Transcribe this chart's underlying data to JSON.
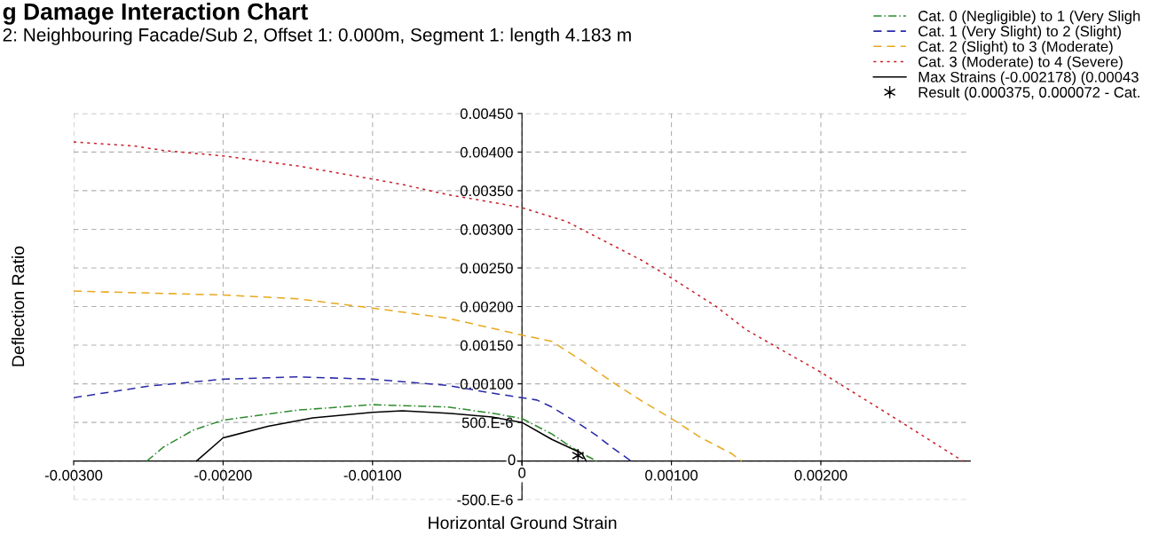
{
  "chart_data": {
    "type": "line",
    "title": "g Damage Interaction Chart",
    "subtitle": "2: Neighbouring Facade/Sub 2, Offset 1: 0.000m, Segment 1: length 4.183 m",
    "xlabel": "Horizontal Ground Strain",
    "ylabel": "Deflection Ratio",
    "xlim": [
      -0.003,
      0.003
    ],
    "ylim": [
      -0.0005,
      0.0045
    ],
    "xticks": [
      {
        "value": -0.003,
        "label": "-0.00300"
      },
      {
        "value": -0.002,
        "label": "-0.00200"
      },
      {
        "value": -0.001,
        "label": "-0.00100"
      },
      0,
      {
        "value": 0.001,
        "label": "0.00100"
      },
      {
        "value": 0.002,
        "label": "0.00200"
      }
    ],
    "yticks": [
      {
        "value": -0.0005,
        "label": "-500.E-6"
      },
      0,
      {
        "value": 0.0005,
        "label": "500.E-6"
      },
      {
        "value": 0.001,
        "label": "0.00100"
      },
      {
        "value": 0.0015,
        "label": "0.00150"
      },
      {
        "value": 0.002,
        "label": "0.00200"
      },
      {
        "value": 0.0025,
        "label": "0.00250"
      },
      {
        "value": 0.003,
        "label": "0.00300"
      },
      {
        "value": 0.0035,
        "label": "0.00350"
      },
      {
        "value": 0.004,
        "label": "0.00400"
      },
      {
        "value": 0.0045,
        "label": "0.00450"
      }
    ],
    "grid": true,
    "legend": "top right",
    "series": [
      {
        "name": "Cat. 0 (Negligible) to 1 (Very Sligh",
        "color": "#2e8b2e",
        "line_style": "dashdot",
        "x": [
          -0.00251,
          -0.0024,
          -0.0022,
          -0.002,
          -0.0015,
          -0.001,
          -0.0005,
          -0.0002,
          0,
          0.0002,
          0.0003,
          0.0004,
          0.0005
        ],
        "values": [
          0,
          0.00018,
          0.0004,
          0.00053,
          0.00066,
          0.00073,
          0.0007,
          0.00062,
          0.00055,
          0.00035,
          0.00022,
          0.0001,
          0
        ]
      },
      {
        "name": "Cat. 1 (Very Slight) to 2 (Slight)",
        "color": "#2a2aa8",
        "line_style": "dashed",
        "x": [
          -0.003,
          -0.0025,
          -0.002,
          -0.0015,
          -0.001,
          -0.0005,
          -0.0002,
          0,
          0.0001,
          0.0002,
          0.0003,
          0.0004,
          0.0005,
          0.0006,
          0.00073
        ],
        "values": [
          0.00082,
          0.00097,
          0.00106,
          0.00109,
          0.00106,
          0.00098,
          0.00088,
          0.00082,
          0.00079,
          0.0007,
          0.00058,
          0.00046,
          0.00033,
          0.00018,
          0
        ]
      },
      {
        "name": "Cat. 2 (Slight) to 3 (Moderate)",
        "color": "#e8a820",
        "line_style": "dashed",
        "x": [
          -0.003,
          -0.002,
          -0.0015,
          -0.001,
          -0.0005,
          -0.0002,
          0,
          0.0002,
          0.0004,
          0.0006,
          0.0008,
          0.001,
          0.0012,
          0.0014,
          0.00147
        ],
        "values": [
          0.0022,
          0.00215,
          0.0021,
          0.00198,
          0.00185,
          0.00172,
          0.00163,
          0.00155,
          0.0013,
          0.00103,
          0.00078,
          0.00055,
          0.0003,
          0.0001,
          0
        ]
      },
      {
        "name": "Cat. 3 (Moderate) to 4 (Severe)",
        "color": "#c8202a",
        "line_style": "dotted",
        "x": [
          -0.003,
          -0.0026,
          -0.0024,
          -0.002,
          -0.0015,
          -0.001,
          -0.0008,
          -0.0005,
          -0.0002,
          0,
          0.0003,
          0.0005,
          0.0008,
          0.001,
          0.0013,
          0.0015,
          0.002,
          0.0025,
          0.00295
        ],
        "values": [
          0.00413,
          0.00408,
          0.00402,
          0.00395,
          0.00382,
          0.00365,
          0.00358,
          0.00345,
          0.00335,
          0.00328,
          0.0031,
          0.0029,
          0.0026,
          0.00237,
          0.002,
          0.0017,
          0.00115,
          0.00055,
          0
        ]
      },
      {
        "name": "Max Strains (-0.002178) (0.00043",
        "color": "#000000",
        "line_style": "solid",
        "x": [
          -0.002178,
          -0.002,
          -0.0017,
          -0.0014,
          -0.001,
          -0.0008,
          -0.0005,
          -0.0002,
          0,
          0.0002,
          0.0004,
          0.00043
        ],
        "values": [
          0,
          0.0003,
          0.00045,
          0.00056,
          0.00063,
          0.00065,
          0.00062,
          0.00057,
          0.0005,
          0.00028,
          0.0001,
          0
        ]
      },
      {
        "name": "Result (0.000375, 0.000072 - Cat.",
        "color": "#000000",
        "type": "scatter",
        "marker": "cross",
        "x": [
          0.000375
        ],
        "values": [
          7.2e-05
        ]
      }
    ]
  }
}
